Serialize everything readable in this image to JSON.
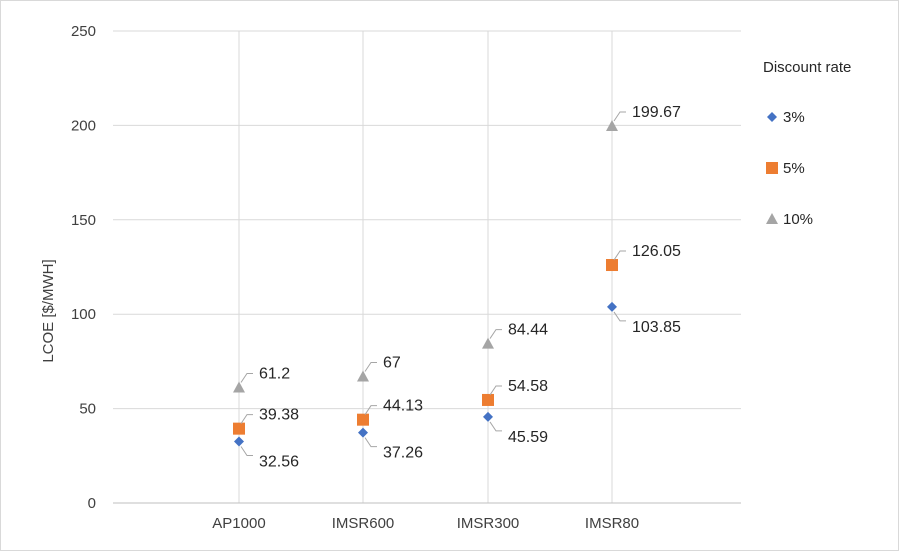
{
  "chart_data": {
    "type": "scatter",
    "categories": [
      "AP1000",
      "IMSR600",
      "IMSR300",
      "IMSR80"
    ],
    "ylabel": "LCOE [$/MWH]",
    "ylim": [
      0,
      250
    ],
    "yticks": [
      "0",
      "50",
      "100",
      "150",
      "200",
      "250"
    ],
    "grid": true,
    "legend_title": "Discount rate",
    "legend_position": "right",
    "series": [
      {
        "name": "3%",
        "marker": "diamond",
        "color": "#4472c4",
        "values": [
          32.56,
          37.26,
          45.59,
          103.85
        ],
        "labels": [
          "32.56",
          "37.26",
          "45.59",
          "103.85"
        ]
      },
      {
        "name": "5%",
        "marker": "square",
        "color": "#ed7d31",
        "values": [
          39.38,
          44.13,
          54.58,
          126.05
        ],
        "labels": [
          "39.38",
          "44.13",
          "54.58",
          "126.05"
        ]
      },
      {
        "name": "10%",
        "marker": "triangle",
        "color": "#a5a5a5",
        "values": [
          61.2,
          67,
          84.44,
          199.67
        ],
        "labels": [
          "61.2",
          "67",
          "84.44",
          "199.67"
        ]
      }
    ]
  }
}
